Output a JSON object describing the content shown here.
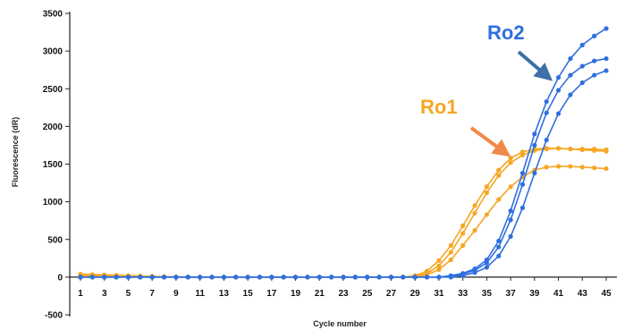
{
  "chart_data": {
    "type": "line",
    "xlabel": "Cycle number",
    "ylabel": "Fluorescence (dR)",
    "xlim": [
      1,
      45
    ],
    "ylim": [
      -500,
      3500
    ],
    "x_ticks": [
      "1",
      "3",
      "5",
      "7",
      "9",
      "11",
      "13",
      "15",
      "17",
      "19",
      "21",
      "23",
      "25",
      "27",
      "29",
      "31",
      "33",
      "35",
      "37",
      "39",
      "41",
      "43",
      "45"
    ],
    "y_ticks": [
      "3500",
      "3000",
      "2500",
      "2000",
      "1500",
      "1000",
      "500",
      "0",
      "-500"
    ],
    "grid": false,
    "x": [
      1,
      2,
      3,
      4,
      5,
      6,
      7,
      8,
      9,
      10,
      11,
      12,
      13,
      14,
      15,
      16,
      17,
      18,
      19,
      20,
      21,
      22,
      23,
      24,
      25,
      26,
      27,
      28,
      29,
      30,
      31,
      32,
      33,
      34,
      35,
      36,
      37,
      38,
      39,
      40,
      41,
      42,
      43,
      44,
      45
    ],
    "series": [
      {
        "group": "Ro1",
        "color": "#f5a623",
        "values": [
          40,
          35,
          30,
          25,
          20,
          15,
          10,
          5,
          0,
          0,
          0,
          0,
          0,
          0,
          0,
          0,
          0,
          0,
          0,
          0,
          0,
          0,
          0,
          0,
          0,
          0,
          0,
          0,
          10,
          50,
          150,
          330,
          580,
          850,
          1120,
          1350,
          1520,
          1620,
          1680,
          1700,
          1710,
          1700,
          1700,
          1700,
          1690
        ]
      },
      {
        "group": "Ro1",
        "color": "#f5a623",
        "values": [
          30,
          28,
          25,
          22,
          18,
          14,
          10,
          6,
          3,
          0,
          0,
          0,
          0,
          0,
          0,
          0,
          0,
          0,
          0,
          0,
          0,
          0,
          0,
          0,
          0,
          0,
          0,
          0,
          20,
          80,
          220,
          420,
          680,
          950,
          1200,
          1420,
          1580,
          1660,
          1700,
          1710,
          1710,
          1700,
          1690,
          1680,
          1670
        ]
      },
      {
        "group": "Ro1",
        "color": "#f5a623",
        "values": [
          20,
          18,
          16,
          14,
          12,
          10,
          8,
          6,
          4,
          2,
          0,
          0,
          0,
          0,
          0,
          0,
          0,
          0,
          0,
          0,
          0,
          0,
          0,
          0,
          0,
          0,
          0,
          0,
          0,
          30,
          100,
          230,
          420,
          620,
          830,
          1030,
          1200,
          1330,
          1420,
          1460,
          1470,
          1470,
          1460,
          1450,
          1440
        ]
      },
      {
        "group": "Ro2",
        "color": "#2f6fe0",
        "values": [
          0,
          0,
          0,
          0,
          0,
          0,
          0,
          0,
          0,
          0,
          0,
          0,
          0,
          0,
          0,
          0,
          0,
          0,
          0,
          0,
          0,
          0,
          0,
          0,
          0,
          0,
          0,
          0,
          0,
          0,
          0,
          20,
          50,
          110,
          230,
          480,
          880,
          1380,
          1900,
          2330,
          2650,
          2900,
          3080,
          3200,
          3300
        ]
      },
      {
        "group": "Ro2",
        "color": "#2f6fe0",
        "values": [
          0,
          0,
          0,
          0,
          0,
          0,
          0,
          0,
          0,
          0,
          0,
          0,
          0,
          0,
          0,
          0,
          0,
          0,
          0,
          0,
          0,
          0,
          0,
          0,
          0,
          0,
          0,
          0,
          0,
          0,
          0,
          10,
          40,
          90,
          190,
          400,
          760,
          1230,
          1750,
          2180,
          2480,
          2680,
          2800,
          2870,
          2900
        ]
      },
      {
        "group": "Ro2",
        "color": "#2f6fe0",
        "values": [
          0,
          0,
          0,
          0,
          0,
          0,
          0,
          0,
          0,
          0,
          0,
          0,
          0,
          0,
          0,
          0,
          0,
          0,
          0,
          0,
          0,
          0,
          0,
          0,
          0,
          0,
          0,
          0,
          0,
          0,
          0,
          0,
          20,
          60,
          130,
          280,
          540,
          920,
          1380,
          1820,
          2170,
          2420,
          2580,
          2680,
          2740
        ]
      }
    ],
    "annotations": [
      {
        "text": "Ro1",
        "color": "#f5a623"
      },
      {
        "text": "Ro2",
        "color": "#2f6fe0"
      }
    ],
    "arrow_colors": {
      "Ro1": "#f08a4b",
      "Ro2": "#3d6fa8"
    }
  }
}
